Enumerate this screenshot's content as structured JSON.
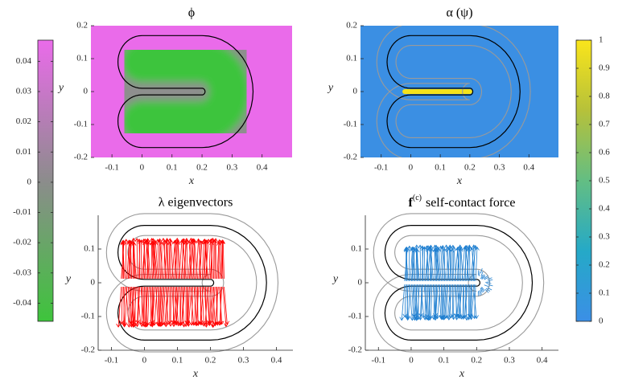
{
  "chart_data": [
    {
      "type": "phase-field",
      "title": "ϕ",
      "xlabel": "x",
      "ylabel": "y",
      "xlim": [
        -0.17,
        0.5
      ],
      "ylim": [
        -0.2,
        0.2
      ],
      "xticks": [
        -0.1,
        0,
        0.1,
        0.2,
        0.3,
        0.4
      ],
      "yticks": [
        -0.2,
        -0.1,
        0,
        0.1,
        0.2
      ],
      "background": "#ea6bea",
      "field_colors": [
        "#8e8e8e",
        "#3cc43c"
      ],
      "contour_color": "#000000"
    },
    {
      "type": "contact-field",
      "title": "α (ψ)",
      "xlabel": "x",
      "ylabel": "y",
      "xlim": [
        -0.17,
        0.5
      ],
      "ylim": [
        -0.2,
        0.2
      ],
      "xticks": [
        -0.1,
        0,
        0.1,
        0.2,
        0.3,
        0.4
      ],
      "yticks": [
        -0.2,
        -0.1,
        0,
        0.1,
        0.2
      ],
      "background": "#3b8fe3",
      "field_colors": [
        "#f5e21a"
      ],
      "contour_color": "#000000"
    },
    {
      "type": "quiver",
      "title": "λ eigenvectors",
      "xlabel": "x",
      "ylabel": "y",
      "xlim": [
        -0.14,
        0.45
      ],
      "ylim": [
        -0.2,
        0.2
      ],
      "xticks": [
        -0.1,
        0,
        0.1,
        0.2,
        0.3,
        0.4
      ],
      "yticks": [
        -0.2,
        -0.1,
        0,
        0.1
      ],
      "color": "#ff0000",
      "contour_color": "#000000"
    },
    {
      "type": "quiver",
      "title": {
        "symbol": "f",
        "superscript": "(c)",
        "text": "self-contact force"
      },
      "xlabel": "x",
      "ylabel": "y",
      "xlim": [
        -0.14,
        0.45
      ],
      "ylim": [
        -0.2,
        0.2
      ],
      "xticks": [
        -0.1,
        0,
        0.1,
        0.2,
        0.3,
        0.4
      ],
      "yticks": [
        -0.2,
        -0.1,
        0,
        0.1
      ],
      "color": "#1f7fd0",
      "contour_color": "#000000"
    },
    {
      "type": "colorbar",
      "ylim": [
        -0.046,
        0.047
      ],
      "yticks": [
        -0.04,
        -0.03,
        -0.02,
        -0.01,
        0,
        0.01,
        0.02,
        0.03,
        0.04
      ],
      "colors": [
        "#3ec43c",
        "#8c8c8c",
        "#ea6bea"
      ],
      "label_side": "left"
    },
    {
      "type": "colorbar",
      "ylim": [
        0,
        1
      ],
      "yticks": [
        0,
        0.1,
        0.2,
        0.3,
        0.4,
        0.5,
        0.6,
        0.7,
        0.8,
        0.9,
        1
      ],
      "colors": [
        "#3b8fe6",
        "#25a9c7",
        "#63be83",
        "#b6c13a",
        "#fae51b"
      ],
      "label_side": "right"
    }
  ]
}
